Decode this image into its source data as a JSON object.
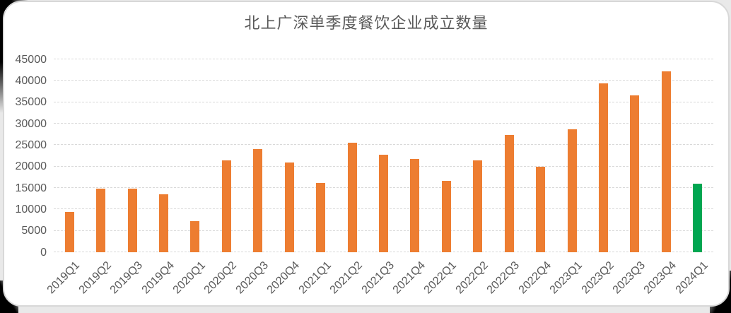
{
  "page": {
    "outer_background": "#000000",
    "surround_background": "#e9e9e9",
    "card_background": "#ffffff",
    "card_border_color": "#d8d8d8"
  },
  "chart_data": {
    "type": "bar",
    "title": "北上广深单季度餐饮企业成立数量",
    "categories": [
      "2019Q1",
      "2019Q2",
      "2019Q3",
      "2019Q4",
      "2020Q1",
      "2020Q2",
      "2020Q3",
      "2020Q4",
      "2021Q1",
      "2021Q2",
      "2021Q3",
      "2021Q4",
      "2022Q1",
      "2022Q2",
      "2022Q3",
      "2022Q4",
      "2023Q1",
      "2023Q2",
      "2023Q3",
      "2023Q4",
      "2024Q1"
    ],
    "values": [
      9400,
      14800,
      14900,
      13500,
      7200,
      21500,
      24100,
      21000,
      16100,
      25500,
      22800,
      21800,
      16600,
      21400,
      27300,
      19900,
      28700,
      39400,
      36600,
      42200,
      16000
    ],
    "xlabel": "",
    "ylabel": "",
    "ylim": [
      0,
      45000
    ],
    "yticks": [
      0,
      5000,
      10000,
      15000,
      20000,
      25000,
      30000,
      35000,
      40000,
      45000
    ],
    "grid": "horizontal-dashed",
    "legend": "none",
    "x_tick_rotation_deg": -45,
    "colors": {
      "bar_default": "#ED7D31",
      "bar_highlight": "#00A651",
      "highlight_index": 20,
      "gridline": "#D9D9D9",
      "text": "#595959",
      "title_text": "#595959"
    }
  }
}
